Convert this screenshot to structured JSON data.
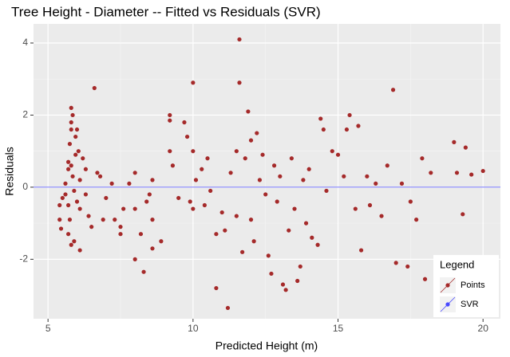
{
  "chart_data": {
    "type": "scatter",
    "title": "Tree Height - Diameter -- Fitted vs Residuals (SVR)",
    "x_label": "Predicted Height (m)",
    "y_label": "Residuals",
    "legend_title": "Legend",
    "legend_position": "bottom-right",
    "grid": true,
    "minor_grid": true,
    "xlim": [
      4.5,
      20.6
    ],
    "ylim": [
      -3.65,
      4.53
    ],
    "xticks": [
      5,
      10,
      15,
      20
    ],
    "yticks": [
      -2,
      0,
      2,
      4
    ],
    "x": [
      5.4,
      5.4,
      5.45,
      5.5,
      5.6,
      5.6,
      5.7,
      5.7,
      5.7,
      5.7,
      5.75,
      5.75,
      5.8,
      5.8,
      5.8,
      5.8,
      5.8,
      5.85,
      5.85,
      5.9,
      5.9,
      5.95,
      5.95,
      6.0,
      6.0,
      6.05,
      6.1,
      6.1,
      6.1,
      6.2,
      6.3,
      6.3,
      6.4,
      6.5,
      6.6,
      6.7,
      6.8,
      6.9,
      7.0,
      7.2,
      7.3,
      7.5,
      7.5,
      7.6,
      7.8,
      8.0,
      8.0,
      8.0,
      8.2,
      8.3,
      8.4,
      8.5,
      8.6,
      8.6,
      8.6,
      8.9,
      9.2,
      9.2,
      9.2,
      9.3,
      9.5,
      9.7,
      9.8,
      9.9,
      10.0,
      10.0,
      10.0,
      10.1,
      10.3,
      10.4,
      10.5,
      10.6,
      10.8,
      10.8,
      11.0,
      11.1,
      11.2,
      11.3,
      11.5,
      11.5,
      11.6,
      11.6,
      11.7,
      11.8,
      11.9,
      12.0,
      12.0,
      12.1,
      12.2,
      12.3,
      12.4,
      12.5,
      12.6,
      12.7,
      12.8,
      12.9,
      13.0,
      13.1,
      13.2,
      13.3,
      13.4,
      13.5,
      13.6,
      13.7,
      13.8,
      13.9,
      14.0,
      14.1,
      14.3,
      14.4,
      14.5,
      14.6,
      14.8,
      15.0,
      15.2,
      15.3,
      15.4,
      15.6,
      15.7,
      15.8,
      16.0,
      16.1,
      16.3,
      16.5,
      16.7,
      16.9,
      17.0,
      17.2,
      17.4,
      17.5,
      17.7,
      17.9,
      18.0,
      18.2,
      19.0,
      19.1,
      19.3,
      19.4,
      19.6,
      20.0
    ],
    "series": [
      {
        "name": "Points",
        "color": "#a52a2a",
        "values": [
          -0.5,
          -0.9,
          -1.15,
          -0.3,
          0.1,
          -0.2,
          0.7,
          0.5,
          -0.5,
          -1.3,
          1.2,
          -0.9,
          2.2,
          1.8,
          1.6,
          0.6,
          -1.6,
          2.0,
          0.3,
          -0.1,
          -1.5,
          1.4,
          0.9,
          1.6,
          -0.4,
          1.0,
          0.2,
          -0.6,
          -1.75,
          0.8,
          0.5,
          -0.2,
          -0.8,
          -1.1,
          2.75,
          0.4,
          0.3,
          -0.9,
          -0.3,
          0.1,
          -0.9,
          -1.1,
          -1.3,
          -0.6,
          0.1,
          0.4,
          -0.6,
          -2.0,
          -1.3,
          -2.35,
          -0.4,
          -0.2,
          0.2,
          -0.9,
          -1.7,
          -1.5,
          2.0,
          1.85,
          1.0,
          0.6,
          -0.3,
          1.8,
          1.4,
          -0.4,
          2.9,
          1.0,
          -0.6,
          0.2,
          0.5,
          -0.5,
          0.8,
          -0.1,
          -1.3,
          -2.8,
          -0.7,
          -1.2,
          -3.35,
          0.4,
          -0.8,
          1.0,
          4.1,
          2.9,
          -1.8,
          0.8,
          2.1,
          1.3,
          -0.9,
          -1.5,
          1.5,
          0.2,
          0.9,
          -0.2,
          -1.9,
          -2.4,
          0.6,
          -0.4,
          0.3,
          -2.7,
          -2.85,
          -1.2,
          0.8,
          -0.6,
          -2.6,
          -2.2,
          0.2,
          -1.0,
          0.5,
          -1.4,
          -1.6,
          1.9,
          1.6,
          -0.1,
          1.0,
          0.9,
          0.3,
          1.6,
          2.0,
          -0.6,
          1.7,
          -1.75,
          0.3,
          -0.5,
          0.1,
          -0.8,
          0.6,
          2.7,
          -2.1,
          0.1,
          -2.2,
          -0.4,
          -0.9,
          0.8,
          -2.55,
          0.4,
          1.25,
          0.4,
          -0.75,
          1.1,
          0.35,
          0.45
        ]
      }
    ],
    "reference_lines": [
      {
        "name": "SVR",
        "value": 0,
        "color": "#4a4aff"
      }
    ]
  }
}
